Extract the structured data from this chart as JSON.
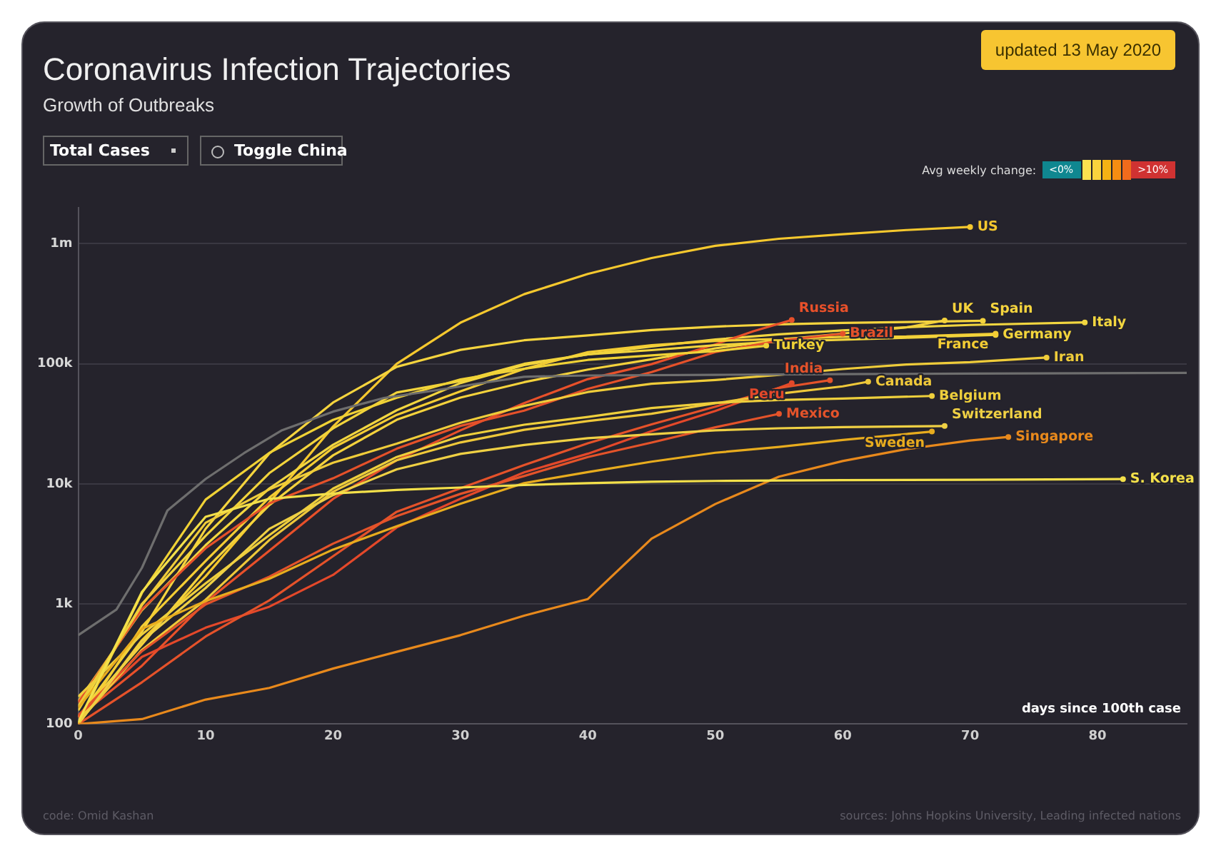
{
  "chart_data": {
    "type": "line",
    "title": "Coronavirus Infection Trajectories",
    "subtitle": "Growth of Outbreaks",
    "xlabel": "days since 100th case",
    "legend_title": "Avg weekly change:",
    "annotations": [
      "updated 13 May 2020",
      "Total Cases",
      "Toggle China",
      "<0%",
      ">10%",
      "code: Omid Kashan",
      "sources: Johns Hopkins University, Leading infected nations"
    ],
    "xlim": [
      0,
      87
    ],
    "xticks": [
      0,
      10,
      20,
      30,
      40,
      50,
      60,
      70,
      80
    ],
    "ylim": [
      100,
      2000000
    ],
    "yticks": [
      {
        "value": 100,
        "label": "100"
      },
      {
        "value": 1000,
        "label": "1k"
      },
      {
        "value": 10000,
        "label": "10k"
      },
      {
        "value": 100000,
        "label": "100k"
      },
      {
        "value": 1000000,
        "label": "1m"
      }
    ],
    "log": true,
    "grid": "y",
    "series": [
      {
        "color": "#6e6e6e",
        "x": [
          0,
          3,
          5,
          7,
          10,
          13,
          16,
          20,
          24,
          28,
          32,
          35,
          40,
          50,
          60,
          70,
          87
        ],
        "values": [
          550,
          900,
          2000,
          6000,
          11000,
          18000,
          28000,
          40000,
          52000,
          60000,
          70000,
          78000,
          80000,
          81000,
          82000,
          83000,
          84000
        ]
      },
      {
        "name": "S. Korea",
        "color": "#f3e04a",
        "x": [
          0,
          5,
          10,
          15,
          20,
          25,
          30,
          35,
          40,
          45,
          50,
          55,
          60,
          65,
          70,
          82
        ],
        "values": [
          104,
          1261,
          5328,
          7513,
          8320,
          8897,
          9332,
          9786,
          10156,
          10423,
          10591,
          10674,
          10752,
          10801,
          10840,
          10962
        ]
      },
      {
        "name": "Singapore",
        "color": "#e8891c",
        "x": [
          0,
          5,
          10,
          15,
          20,
          25,
          30,
          35,
          40,
          45,
          50,
          55,
          60,
          65,
          70,
          73
        ],
        "values": [
          100,
          110,
          160,
          200,
          290,
          400,
          550,
          800,
          1100,
          3500,
          6800,
          11500,
          15500,
          19500,
          23000,
          24600
        ]
      },
      {
        "name": "Sweden",
        "color": "#e8ac1e",
        "x": [
          0,
          5,
          10,
          15,
          20,
          25,
          30,
          35,
          40,
          45,
          50,
          55,
          60,
          67
        ],
        "values": [
          137,
          620,
          1059,
          1623,
          2840,
          4435,
          6830,
          10151,
          12540,
          15322,
          18177,
          20302,
          23216,
          27272
        ]
      },
      {
        "name": "Switzerland",
        "color": "#efd044",
        "x": [
          0,
          5,
          10,
          15,
          20,
          25,
          30,
          35,
          40,
          45,
          50,
          55,
          60,
          68
        ],
        "values": [
          100,
          491,
          1359,
          4222,
          8060,
          13213,
          17768,
          21100,
          24051,
          25936,
          27944,
          29061,
          29705,
          30344
        ]
      },
      {
        "name": "Mexico",
        "color": "#e4532a",
        "x": [
          0,
          5,
          10,
          15,
          20,
          25,
          30,
          35,
          40,
          45,
          50,
          55
        ],
        "values": [
          118,
          405,
          993,
          1688,
          3181,
          5399,
          8261,
          11633,
          16752,
          22088,
          29616,
          38324
        ]
      },
      {
        "name": "Belgium",
        "color": "#eecf3c",
        "x": [
          0,
          5,
          10,
          15,
          20,
          25,
          30,
          35,
          40,
          45,
          50,
          55,
          60,
          67
        ],
        "values": [
          169,
          559,
          1486,
          3743,
          9134,
          16770,
          24983,
          31119,
          36138,
          42797,
          47334,
          49906,
          51420,
          53981
        ]
      },
      {
        "name": "Canada",
        "color": "#efc83a",
        "x": [
          0,
          5,
          10,
          15,
          20,
          25,
          30,
          35,
          40,
          45,
          50,
          55,
          60,
          62
        ],
        "values": [
          103,
          415,
          1086,
          3409,
          8612,
          15756,
          22148,
          28209,
          33383,
          38422,
          46895,
          56343,
          64922,
          71000
        ]
      },
      {
        "name": "India",
        "color": "#e5522a",
        "x": [
          0,
          5,
          10,
          15,
          20,
          25,
          30,
          35,
          40,
          45,
          50,
          55,
          59
        ],
        "values": [
          100,
          223,
          536,
          1071,
          2500,
          5865,
          9205,
          14352,
          21797,
          31332,
          43980,
          62939,
          73000
        ]
      },
      {
        "name": "Peru",
        "color": "#e4482a",
        "x": [
          0,
          5,
          10,
          15,
          20,
          25,
          30,
          35,
          40,
          45,
          50,
          56
        ],
        "values": [
          117,
          363,
          635,
          950,
          1746,
          4342,
          7519,
          12491,
          17837,
          27517,
          40459,
          69000
        ]
      },
      {
        "name": "Iran",
        "color": "#efcc3a",
        "x": [
          0,
          5,
          10,
          15,
          20,
          25,
          30,
          35,
          40,
          45,
          50,
          55,
          60,
          65,
          70,
          76
        ],
        "values": [
          141,
          978,
          4747,
          9000,
          14991,
          21638,
          32332,
          44605,
          58226,
          68192,
          73303,
          80868,
          90481,
          98647,
          103135,
          112725
        ]
      },
      {
        "name": "Turkey",
        "color": "#f0d236",
        "x": [
          0,
          5,
          10,
          15,
          20,
          25,
          30,
          35,
          40,
          45,
          50,
          54
        ],
        "values": [
          100,
          1236,
          7402,
          18135,
          34109,
          52167,
          74193,
          90980,
          107773,
          117589,
          127659,
          141475
        ]
      },
      {
        "name": "Brazil",
        "color": "#e5512a",
        "x": [
          0,
          5,
          10,
          15,
          20,
          25,
          30,
          35,
          40,
          45,
          50,
          55,
          60
        ],
        "values": [
          151,
          904,
          2915,
          6880,
          11130,
          19638,
          30425,
          40743,
          61888,
          85380,
          125218,
          155939,
          178214
        ]
      },
      {
        "name": "Germany",
        "color": "#f2d43c",
        "x": [
          0,
          5,
          10,
          15,
          20,
          25,
          30,
          35,
          40,
          45,
          50,
          55,
          60,
          65,
          72
        ],
        "values": [
          130,
          1000,
          3700,
          12300,
          29000,
          57700,
          71800,
          100000,
          120000,
          130000,
          143000,
          153000,
          159000,
          165000,
          174000
        ]
      },
      {
        "name": "France",
        "color": "#f4cd34",
        "x": [
          0,
          5,
          10,
          15,
          20,
          25,
          30,
          35,
          40,
          45,
          50,
          55,
          60,
          65,
          72
        ],
        "values": [
          100,
          650,
          2281,
          7700,
          20000,
          37600,
          59000,
          90800,
          125000,
          143000,
          155000,
          161000,
          168000,
          169000,
          178000
        ]
      },
      {
        "name": "Russia",
        "color": "#e8502a",
        "x": [
          0,
          5,
          10,
          15,
          20,
          25,
          30,
          35,
          40,
          45,
          50,
          53,
          56
        ],
        "values": [
          114,
          306,
          1036,
          2777,
          7497,
          15770,
          27938,
          47121,
          74588,
          99399,
          145000,
          187000,
          232000
        ]
      },
      {
        "name": "UK",
        "color": "#f4d23c",
        "x": [
          0,
          5,
          10,
          15,
          20,
          25,
          30,
          35,
          40,
          45,
          50,
          55,
          60,
          65,
          68
        ],
        "values": [
          115,
          460,
          1950,
          6650,
          17300,
          34200,
          52300,
          70300,
          89600,
          109000,
          134600,
          158300,
          178700,
          201100,
          229700
        ]
      },
      {
        "name": "Spain",
        "color": "#f5d43e",
        "x": [
          0,
          5,
          10,
          15,
          20,
          25,
          30,
          35,
          40,
          45,
          50,
          55,
          60,
          65,
          71
        ],
        "values": [
          114,
          589,
          4231,
          17963,
          47610,
          94417,
          130759,
          157022,
          172541,
          190839,
          204178,
          213435,
          219329,
          222857,
          228030
        ]
      },
      {
        "name": "Italy",
        "color": "#f2d640",
        "x": [
          0,
          5,
          10,
          15,
          20,
          25,
          30,
          35,
          40,
          45,
          50,
          55,
          60,
          65,
          70,
          79
        ],
        "values": [
          155,
          888,
          3089,
          9172,
          21157,
          41035,
          69176,
          97689,
          119827,
          139422,
          159516,
          175925,
          189973,
          201505,
          210717,
          221216
        ]
      },
      {
        "name": "US",
        "color": "#f5c82e",
        "x": [
          0,
          5,
          10,
          15,
          20,
          25,
          30,
          35,
          40,
          45,
          50,
          55,
          60,
          65,
          70
        ],
        "values": [
          100,
          500,
          1700,
          7000,
          30000,
          100000,
          220000,
          380000,
          560000,
          760000,
          960000,
          1100000,
          1200000,
          1300000,
          1380000
        ]
      }
    ]
  }
}
